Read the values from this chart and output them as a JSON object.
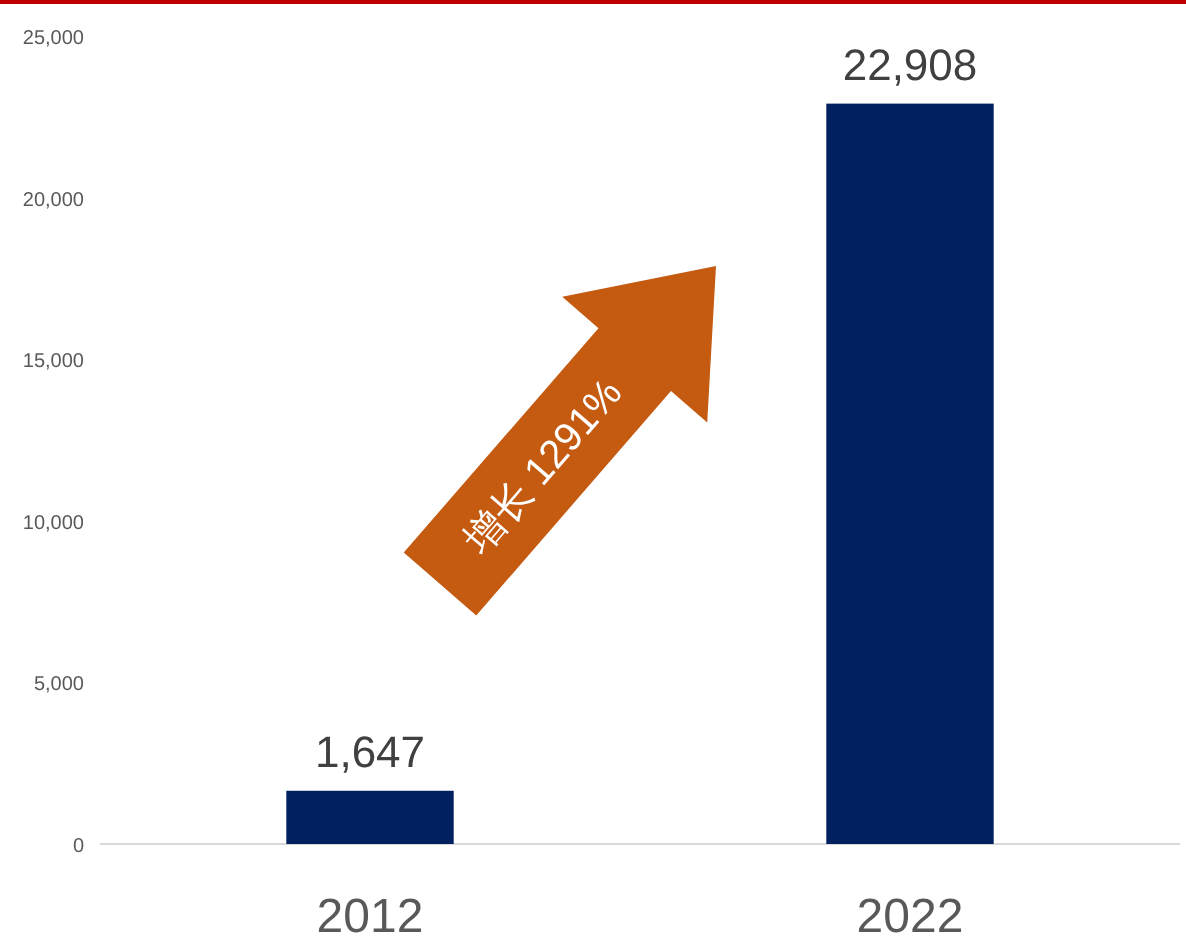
{
  "chart_data": {
    "type": "bar",
    "categories": [
      "2012",
      "2022"
    ],
    "values": [
      1647,
      22908
    ],
    "color": "#002060",
    "value_labels": [
      "1,647",
      "22,908"
    ],
    "ylim": [
      0,
      25000
    ],
    "yticks": [
      {
        "value": 0,
        "label": "0"
      },
      {
        "value": 5000,
        "label": "5,000"
      },
      {
        "value": 10000,
        "label": "10,000"
      },
      {
        "value": 15000,
        "label": "15,000"
      },
      {
        "value": 20000,
        "label": "20,000"
      },
      {
        "value": 25000,
        "label": "25,000"
      }
    ],
    "annotations": [
      "增长 1291%"
    ],
    "grid": false
  }
}
